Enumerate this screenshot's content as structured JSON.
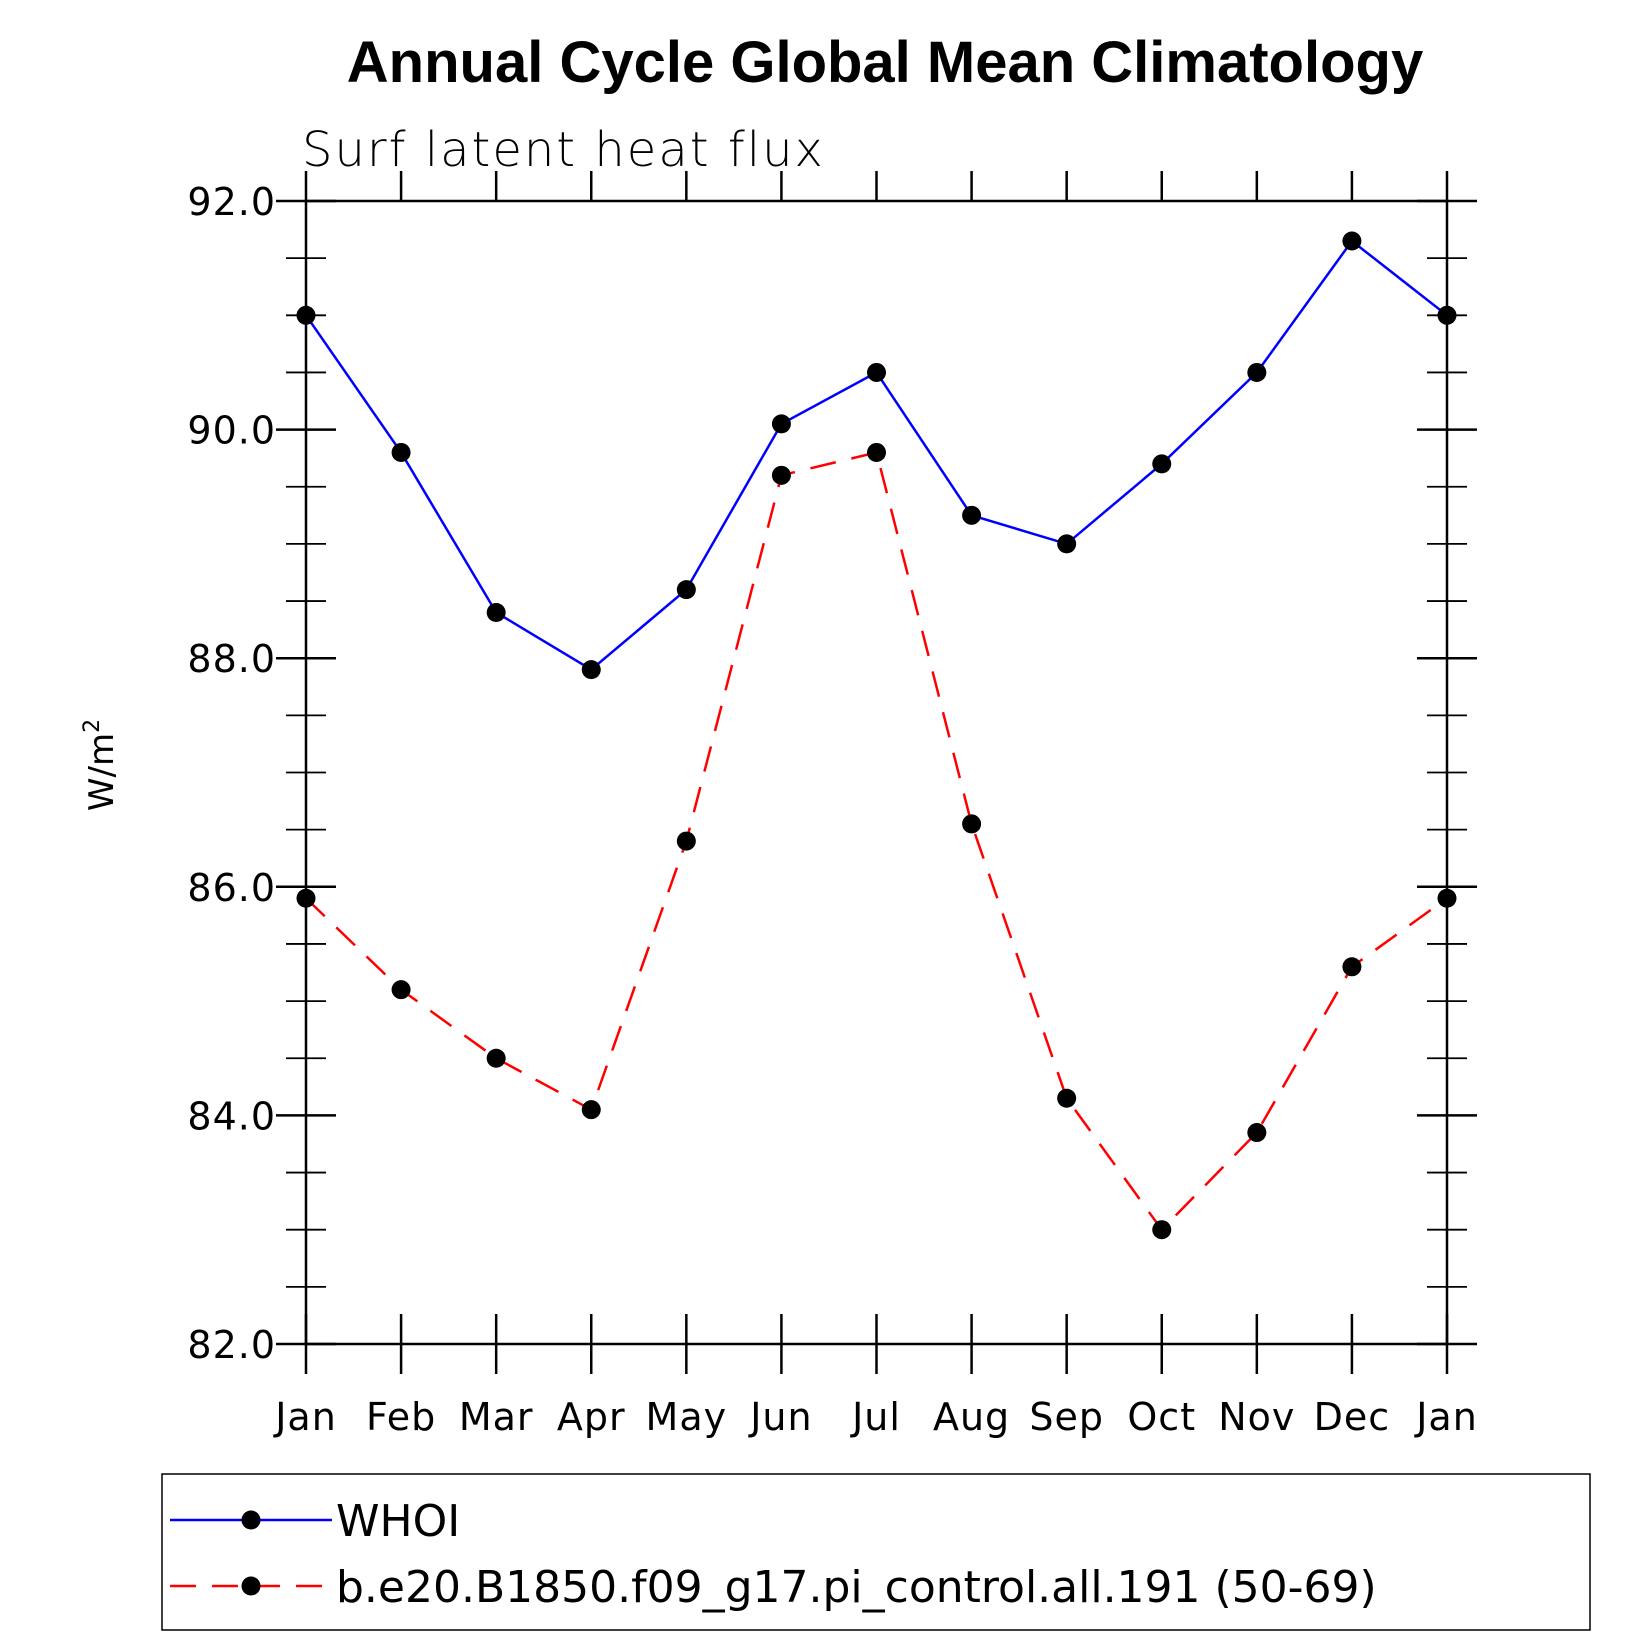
{
  "chart_data": {
    "type": "line",
    "title": "Annual Cycle Global Mean Climatology",
    "subtitle": "Surf latent heat flux",
    "ylabel_base": "W/m",
    "ylabel_sup": "2",
    "xlabel": "",
    "categories": [
      "Jan",
      "Feb",
      "Mar",
      "Apr",
      "May",
      "Jun",
      "Jul",
      "Aug",
      "Sep",
      "Oct",
      "Nov",
      "Dec",
      "Jan"
    ],
    "ylim": [
      82.0,
      92.0
    ],
    "y_ticks": [
      "82.0",
      "84.0",
      "86.0",
      "88.0",
      "90.0",
      "92.0"
    ],
    "y_tick_values": [
      82,
      84,
      86,
      88,
      90,
      92
    ],
    "grid": false,
    "legend_position": "bottom",
    "series": [
      {
        "name": "WHOI",
        "color": "#0000ff",
        "line_style": "solid",
        "marker": "filled-circle",
        "values": [
          91.0,
          89.8,
          88.4,
          87.9,
          88.6,
          90.05,
          90.5,
          89.25,
          89.0,
          89.7,
          90.5,
          91.65,
          91.0
        ]
      },
      {
        "name": "b.e20.B1850.f09_g17.pi_control.all.191 (50-69)",
        "color": "#ff0000",
        "line_style": "dashed",
        "marker": "filled-circle",
        "values": [
          85.9,
          85.1,
          84.5,
          84.05,
          86.4,
          89.6,
          89.8,
          86.55,
          84.15,
          83.0,
          83.85,
          85.3,
          85.9
        ]
      }
    ]
  }
}
